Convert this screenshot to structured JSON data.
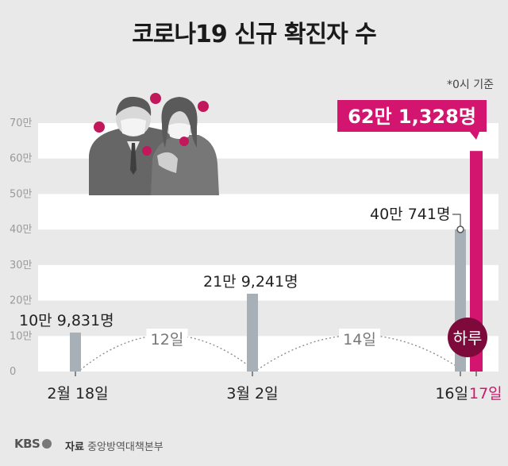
{
  "title": "코로나19 신규 확진자 수",
  "note": "*0시 기준",
  "source_label": "자료",
  "source_name": "중앙방역대책본부",
  "logo_text": "KBS",
  "colors": {
    "background": "#e9e9e9",
    "band": "#ffffff",
    "bar_gray": "#a8b0b7",
    "bar_highlight": "#d4156f",
    "badge_dark": "#7d0a3a",
    "axis_text": "#9a9a9a"
  },
  "chart_data": {
    "type": "bar",
    "title": "코로나19 신규 확진자 수",
    "ylim": [
      0,
      70
    ],
    "yunit": "만",
    "yticks": [
      {
        "value": 0,
        "label": "0"
      },
      {
        "value": 10,
        "label": "10만"
      },
      {
        "value": 20,
        "label": "20만"
      },
      {
        "value": 30,
        "label": "30만"
      },
      {
        "value": 40,
        "label": "40만"
      },
      {
        "value": 50,
        "label": "50만"
      },
      {
        "value": 60,
        "label": "60만"
      },
      {
        "value": 70,
        "label": "70만"
      }
    ],
    "bars": [
      {
        "date": "2월 18일",
        "value": 10.9831,
        "label": "10만 9,831명",
        "highlight": false
      },
      {
        "date": "3월 2일",
        "value": 21.9241,
        "label": "21만 9,241명",
        "highlight": false
      },
      {
        "date": "16일",
        "value": 40.0741,
        "label": "40만 741명",
        "highlight": false
      },
      {
        "date": "17일",
        "value": 62.1328,
        "label": "62만 1,328명",
        "highlight": true
      }
    ],
    "intervals": [
      {
        "from": "2월 18일",
        "to": "3월 2일",
        "label": "12일"
      },
      {
        "from": "3월 2일",
        "to": "16일",
        "label": "14일"
      },
      {
        "from": "16일",
        "to": "17일",
        "label": "하루"
      }
    ],
    "grid": true
  }
}
